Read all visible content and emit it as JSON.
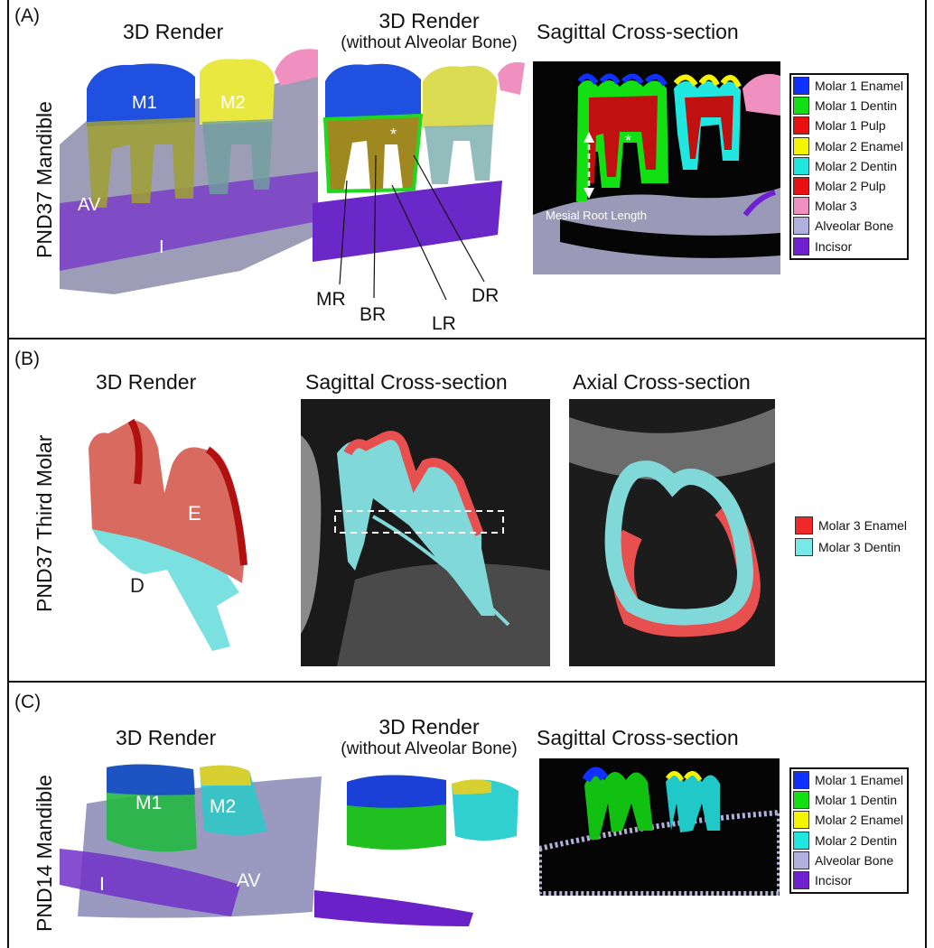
{
  "panels": {
    "a": {
      "label": "(A)",
      "row_label": "PND37 Mandible",
      "titles": {
        "render": "3D Render",
        "render_nb": "3D Render",
        "render_nb_sub": "(without Alveolar Bone)",
        "sagittal": "Sagittal Cross-section"
      },
      "annotations": {
        "m1": "M1",
        "m2": "M2",
        "av": "AV",
        "i": "I",
        "mr": "MR",
        "br": "BR",
        "lr": "LR",
        "dr": "DR",
        "asterisk": "*",
        "mesial_root_length": "Mesial Root Length"
      },
      "legend": [
        {
          "label": "Molar 1 Enamel",
          "color": "#1030ff"
        },
        {
          "label": "Molar 1 Dentin",
          "color": "#12e012"
        },
        {
          "label": "Molar 1 Pulp",
          "color": "#e81010"
        },
        {
          "label": "Molar 2 Enamel",
          "color": "#f5f500"
        },
        {
          "label": "Molar 2 Dentin",
          "color": "#20e8e0"
        },
        {
          "label": "Molar 2 Pulp",
          "color": "#e81010"
        },
        {
          "label": "Molar 3",
          "color": "#f090c0"
        },
        {
          "label": "Alveolar Bone",
          "color": "#b0b0e0"
        },
        {
          "label": "Incisor",
          "color": "#7020d0"
        }
      ]
    },
    "b": {
      "label": "(B)",
      "row_label": "PND37 Third Molar",
      "titles": {
        "render": "3D Render",
        "sagittal": "Sagittal Cross-section",
        "axial": "Axial Cross-section"
      },
      "annotations": {
        "e": "E",
        "d": "D"
      },
      "legend": [
        {
          "label": "Molar 3 Enamel",
          "color": "#f02828"
        },
        {
          "label": "Molar 3 Dentin",
          "color": "#78e8e8"
        }
      ]
    },
    "c": {
      "label": "(C)",
      "row_label": "PND14 Mandible",
      "titles": {
        "render": "3D Render",
        "render_nb": "3D Render",
        "render_nb_sub": "(without Alveolar Bone)",
        "sagittal": "Sagittal Cross-section"
      },
      "annotations": {
        "m1": "M1",
        "m2": "M2",
        "i": "I",
        "av": "AV"
      },
      "legend": [
        {
          "label": "Molar 1 Enamel",
          "color": "#1030ff"
        },
        {
          "label": "Molar 1 Dentin",
          "color": "#12e012"
        },
        {
          "label": "Molar 2 Enamel",
          "color": "#f5f500"
        },
        {
          "label": "Molar 2 Dentin",
          "color": "#20e8e0"
        },
        {
          "label": "Alveolar Bone",
          "color": "#b0b0e0"
        },
        {
          "label": "Incisor",
          "color": "#7020d0"
        }
      ]
    }
  }
}
